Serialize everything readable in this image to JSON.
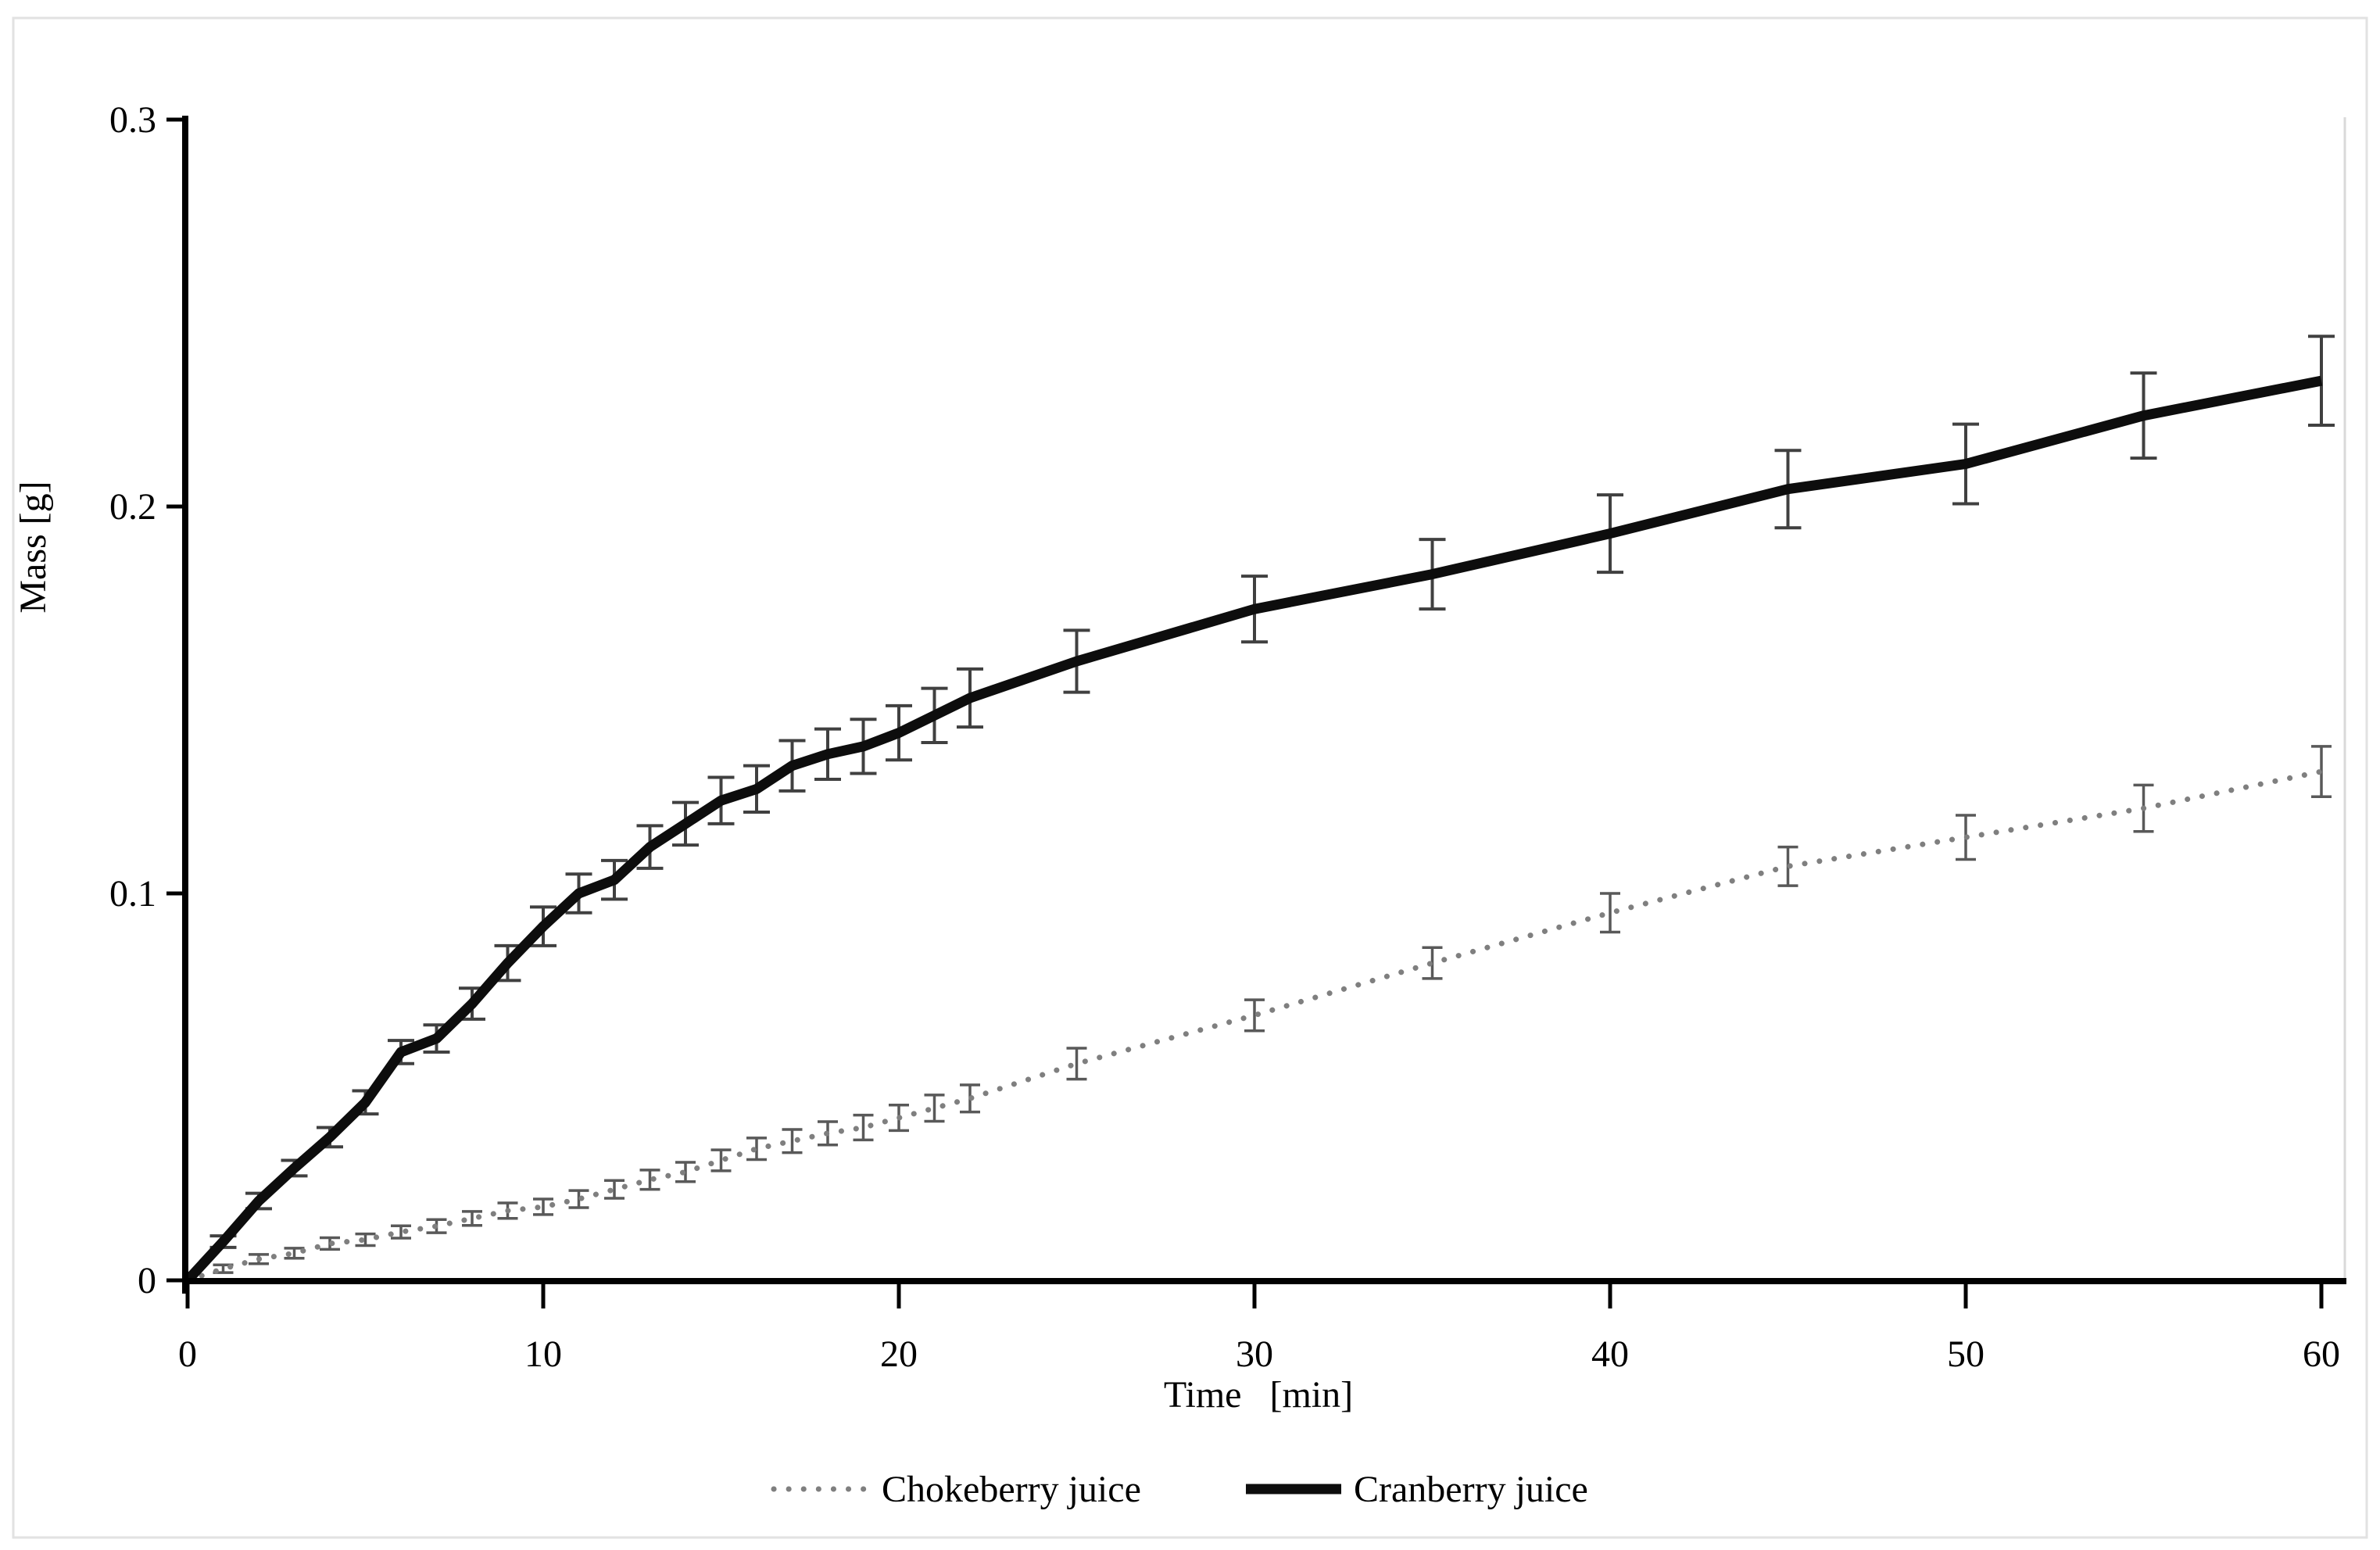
{
  "frame": {
    "background_color": "#ffffff",
    "border_color": "#e2e2e2",
    "plot_right_border_color": "#d9d9d9",
    "axis_color": "#000000"
  },
  "chart_data": {
    "type": "line",
    "title": "",
    "xlabel": "Time   [min]",
    "ylabel": "Mass [g]",
    "xlim": [
      0,
      60
    ],
    "ylim": [
      0,
      0.3
    ],
    "x_ticks": [
      0,
      10,
      20,
      30,
      40,
      50,
      60
    ],
    "y_ticks": [
      0,
      0.1,
      0.2,
      0.3
    ],
    "y_tick_labels": [
      "0",
      "0.1",
      "0.2",
      "0.3"
    ],
    "grid": false,
    "error_bars": true,
    "legend_position": "bottom-center",
    "x": [
      0,
      1,
      2,
      3,
      4,
      5,
      6,
      7,
      8,
      9,
      10,
      11,
      12,
      13,
      14,
      15,
      16,
      17,
      18,
      19,
      20,
      21,
      22,
      25,
      30,
      35,
      40,
      45,
      50,
      55,
      60
    ],
    "series": [
      {
        "name": "Chokeberry juice",
        "style": "dotted",
        "color": "#7f7f7f",
        "error_color": "#595959",
        "values": [
          0,
          0.003,
          0.0055,
          0.007,
          0.0095,
          0.0105,
          0.0125,
          0.014,
          0.016,
          0.018,
          0.019,
          0.021,
          0.0235,
          0.026,
          0.028,
          0.031,
          0.034,
          0.036,
          0.038,
          0.0395,
          0.042,
          0.0445,
          0.047,
          0.056,
          0.0685,
          0.082,
          0.095,
          0.107,
          0.1145,
          0.122,
          0.1315
        ],
        "errors": [
          0,
          0.001,
          0.0012,
          0.0013,
          0.0015,
          0.0015,
          0.0016,
          0.0017,
          0.0018,
          0.002,
          0.002,
          0.0022,
          0.0023,
          0.0025,
          0.0025,
          0.0027,
          0.0028,
          0.003,
          0.003,
          0.0032,
          0.0033,
          0.0034,
          0.0035,
          0.004,
          0.004,
          0.004,
          0.005,
          0.005,
          0.0057,
          0.006,
          0.0065
        ]
      },
      {
        "name": "Cranberry juice",
        "style": "solid",
        "color": "#0d0d0d",
        "error_color": "#404040",
        "values": [
          0,
          0.01,
          0.0205,
          0.029,
          0.037,
          0.046,
          0.059,
          0.0625,
          0.0715,
          0.082,
          0.0915,
          0.1,
          0.1035,
          0.112,
          0.118,
          0.124,
          0.127,
          0.133,
          0.136,
          0.138,
          0.1415,
          0.146,
          0.1505,
          0.16,
          0.1735,
          0.1825,
          0.193,
          0.2045,
          0.211,
          0.2235,
          0.2325
        ],
        "errors": [
          0,
          0.0015,
          0.002,
          0.002,
          0.0025,
          0.003,
          0.003,
          0.0035,
          0.004,
          0.0045,
          0.005,
          0.005,
          0.005,
          0.0055,
          0.0055,
          0.006,
          0.006,
          0.0065,
          0.0065,
          0.007,
          0.007,
          0.007,
          0.0075,
          0.008,
          0.0085,
          0.009,
          0.01,
          0.01,
          0.0103,
          0.011,
          0.0115
        ]
      }
    ]
  }
}
